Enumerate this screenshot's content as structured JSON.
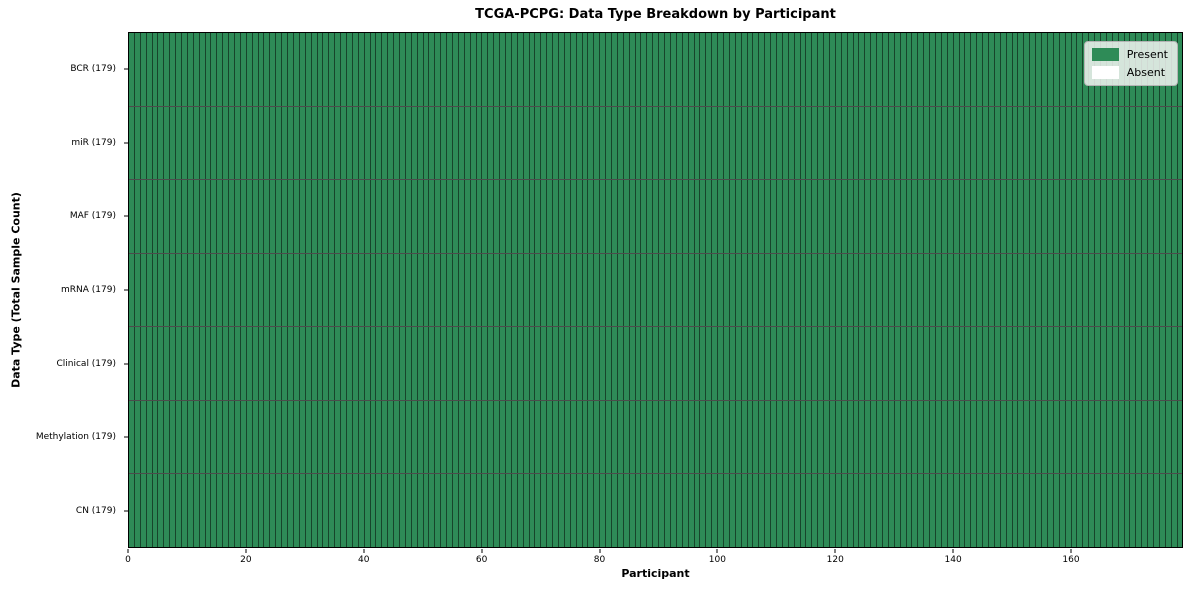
{
  "chart_data": {
    "type": "heatmap",
    "title": "TCGA-PCPG: Data Type Breakdown by Participant",
    "xlabel": "Participant",
    "ylabel": "Data Type (Total Sample Count)",
    "x_ticks": [
      0,
      20,
      40,
      60,
      80,
      100,
      120,
      140,
      160
    ],
    "x_range": [
      0,
      179
    ],
    "n_participants": 179,
    "rows_top_to_bottom": [
      {
        "label": "BCR (179)",
        "present_count": 179,
        "absent_count": 0
      },
      {
        "label": "miR (179)",
        "present_count": 179,
        "absent_count": 0
      },
      {
        "label": "MAF (179)",
        "present_count": 179,
        "absent_count": 0
      },
      {
        "label": "mRNA (179)",
        "present_count": 179,
        "absent_count": 0
      },
      {
        "label": "Clinical (179)",
        "present_count": 179,
        "absent_count": 0
      },
      {
        "label": "Methylation (179)",
        "present_count": 179,
        "absent_count": 0
      },
      {
        "label": "CN (179)",
        "present_count": 179,
        "absent_count": 0
      }
    ],
    "all_cells": "Present",
    "colors": {
      "present": "#2e8b57",
      "absent": "#ffffff",
      "cell_edge": "rgba(0,0,0,0.50)",
      "row_separator": "rgba(0,0,0,0.70)",
      "spine": "#000000"
    },
    "legend": {
      "position": "upper right",
      "items": [
        {
          "label": "Present",
          "color": "#2e8b57"
        },
        {
          "label": "Absent",
          "color": "#ffffff"
        }
      ]
    },
    "grid": "per-cell vertical edges and per-row horizontal separators",
    "legend_frame": true
  }
}
